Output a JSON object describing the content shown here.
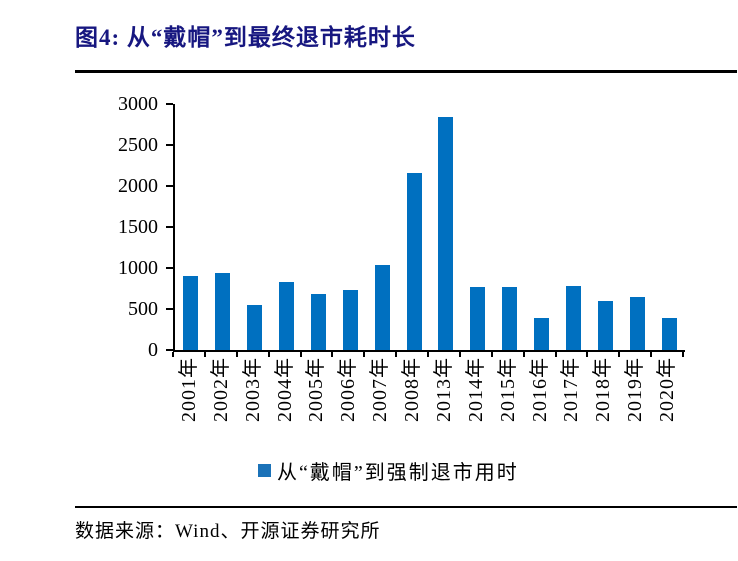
{
  "header": {
    "title": "图4: 从“戴帽”到最终退市耗时长"
  },
  "chart_data": {
    "type": "bar",
    "title": "图4: 从“戴帽”到最终退市耗时长",
    "categories": [
      "2001年",
      "2002年",
      "2003年",
      "2004年",
      "2005年",
      "2006年",
      "2007年",
      "2008年",
      "2013年",
      "2014年",
      "2015年",
      "2016年",
      "2017年",
      "2018年",
      "2019年",
      "2020年"
    ],
    "values": [
      905,
      945,
      550,
      835,
      680,
      730,
      1040,
      2155,
      2845,
      770,
      765,
      390,
      775,
      600,
      645,
      390
    ],
    "series": [
      {
        "name": "从“戴帽”到强制退市用时",
        "values": [
          905,
          945,
          550,
          835,
          680,
          730,
          1040,
          2155,
          2845,
          770,
          765,
          390,
          775,
          600,
          645,
          390
        ]
      }
    ],
    "xlabel": "",
    "ylabel": "",
    "ylim": [
      0,
      3000
    ],
    "y_ticks": [
      3000,
      2500,
      2000,
      1500,
      1000,
      500,
      0
    ],
    "grid": false,
    "legend_position": "bottom",
    "bar_color": "#0070C0"
  },
  "legend": {
    "label": "从“戴帽”到强制退市用时",
    "marker_color": "#1B72B8"
  },
  "footer": {
    "source": "数据来源：Wind、开源证券研究所"
  },
  "colors": {
    "title": "#171780",
    "axis": "#000000",
    "bar": "#0070C0"
  }
}
